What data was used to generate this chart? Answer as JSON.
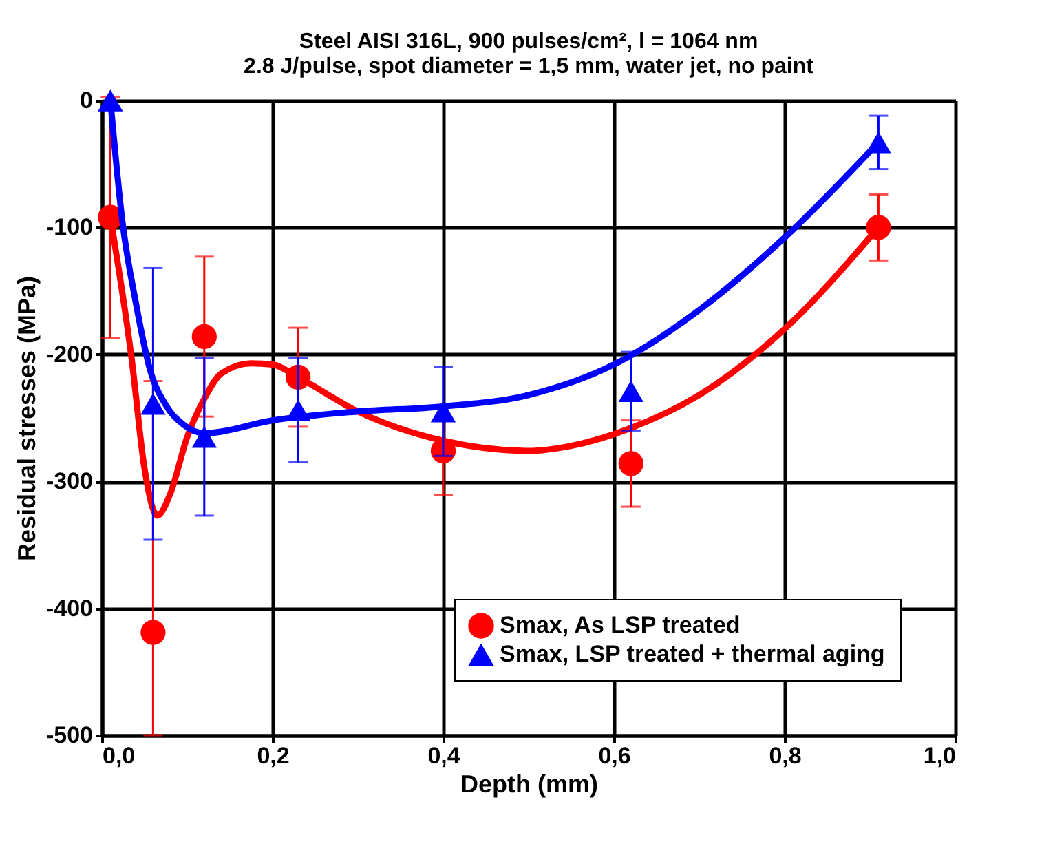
{
  "chart_data": {
    "type": "scatter",
    "title": [
      "Steel AISI 316L, 900 pulses/cm², l  = 1064 nm",
      "2.8 J/pulse, spot diameter = 1,5 mm, water jet, no paint"
    ],
    "xlabel": "Depth (mm)",
    "ylabel": "Residual stresses (MPa)",
    "xlim": [
      0,
      1
    ],
    "xticks": [
      {
        "value": 0,
        "label": "0,0"
      },
      {
        "value": 0.2,
        "label": "0,2"
      },
      {
        "value": 0.4,
        "label": "0,4"
      },
      {
        "value": 0.6,
        "label": "0,6"
      },
      {
        "value": 0.8,
        "label": "0,8"
      },
      {
        "value": 1,
        "label": "1,0"
      }
    ],
    "ylim": [
      -500,
      0
    ],
    "yticks": [
      -500,
      -400,
      -300,
      -200,
      -100,
      0
    ],
    "grid": true,
    "legend": "bottom right",
    "series": [
      {
        "name": "Smax, As LSP treated",
        "marker": "circle",
        "color": "#ff0000",
        "x": [
          0.01,
          0.06,
          0.12,
          0.23,
          0.4,
          0.62,
          0.91
        ],
        "values": [
          -92,
          -419,
          -186,
          -218,
          -276,
          -286,
          -100
        ],
        "errors": [
          95,
          [
            -500,
            -221
          ],
          63,
          39,
          35,
          34,
          26
        ]
      },
      {
        "type": "line",
        "line_style": "solid",
        "color": "#ff0000",
        "x": [
          0.01,
          0.035,
          0.05,
          0.065,
          0.08,
          0.1,
          0.12,
          0.14,
          0.175,
          0.2,
          0.23,
          0.3,
          0.4,
          0.5,
          0.55,
          0.62,
          0.7,
          0.8,
          0.91
        ],
        "values": [
          -92,
          -204,
          -290,
          -327,
          -310,
          -265,
          -235,
          -215,
          -207,
          -208,
          -218,
          -245,
          -268,
          -276,
          -272,
          -258,
          -232,
          -180,
          -100
        ]
      },
      {
        "name": "Smax, LSP treated + thermal aging",
        "marker": "triangle",
        "color": "#0000ff",
        "x": [
          0.01,
          0.06,
          0.12,
          0.23,
          0.4,
          0.62,
          0.91
        ],
        "values": [
          0,
          -239,
          -265,
          -244,
          -245,
          -229,
          -33
        ],
        "errors": [
          null,
          107,
          62,
          41,
          35,
          31,
          21
        ]
      },
      {
        "type": "line",
        "line_style": "solid",
        "color": "#0000ff",
        "x": [
          0.01,
          0.024,
          0.04,
          0.056,
          0.075,
          0.095,
          0.12,
          0.2,
          0.3,
          0.4,
          0.5,
          0.6,
          0.7,
          0.8,
          0.91
        ],
        "values": [
          0,
          -95,
          -160,
          -211,
          -240,
          -255,
          -262,
          -252,
          -245,
          -241,
          -232,
          -208,
          -165,
          -108,
          -33
        ]
      }
    ]
  }
}
